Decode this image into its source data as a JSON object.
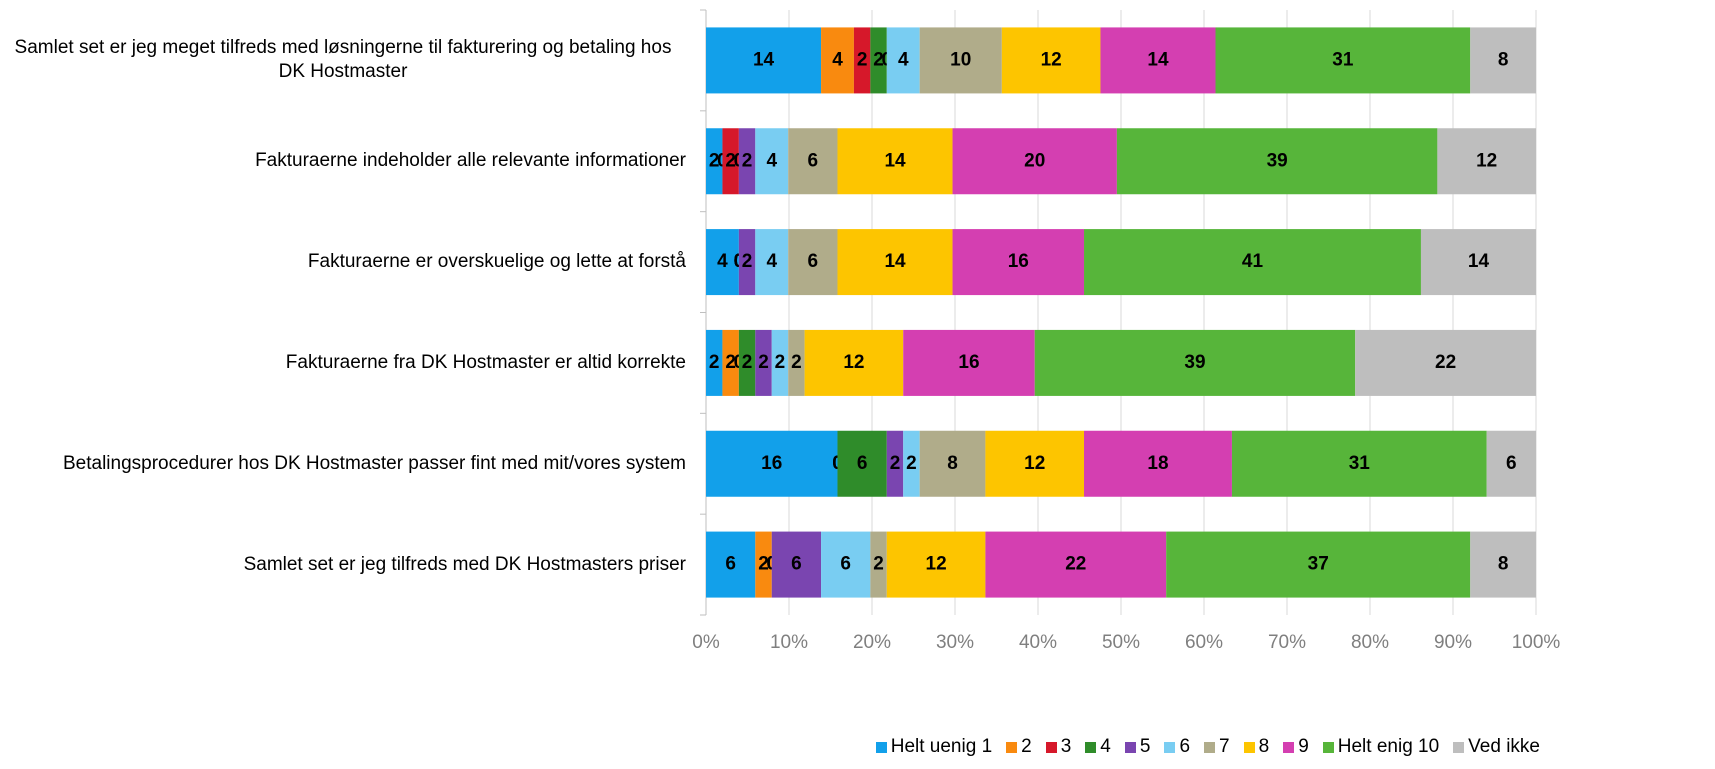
{
  "chart_data": {
    "type": "stacked-bar-100",
    "categories": [
      "Samlet set er jeg meget tilfreds med løsningerne til fakturering og betaling hos DK Hostmaster",
      "Fakturaerne indeholder alle relevante informationer",
      "Fakturaerne er overskuelige og lette at forstå",
      "Fakturaerne fra DK Hostmaster er altid korrekte",
      "Betalingsprocedurer hos DK Hostmaster passer fint med mit/vores system",
      "Samlet set er jeg tilfreds med DK Hostmasters priser"
    ],
    "series": [
      {
        "name": "Helt uenig 1",
        "color": "#12a0ea",
        "values": [
          14,
          2,
          4,
          2,
          16,
          6
        ]
      },
      {
        "name": "2",
        "color": "#f98a0f",
        "values": [
          4,
          0,
          0,
          2,
          0,
          2
        ]
      },
      {
        "name": "3",
        "color": "#d6182a",
        "values": [
          2,
          2,
          0,
          0,
          0,
          0
        ]
      },
      {
        "name": "4",
        "color": "#2f8c2a",
        "values": [
          2,
          0,
          0,
          2,
          6,
          0
        ]
      },
      {
        "name": "5",
        "color": "#7a45b0",
        "values": [
          0,
          2,
          2,
          2,
          2,
          6
        ]
      },
      {
        "name": "6",
        "color": "#79cdf2",
        "values": [
          4,
          4,
          4,
          2,
          2,
          6
        ]
      },
      {
        "name": "7",
        "color": "#b0ac8a",
        "values": [
          10,
          6,
          6,
          2,
          8,
          2
        ]
      },
      {
        "name": "8",
        "color": "#fdc500",
        "values": [
          12,
          14,
          14,
          12,
          12,
          12
        ]
      },
      {
        "name": "9",
        "color": "#d43fb1",
        "values": [
          14,
          20,
          16,
          16,
          18,
          22
        ]
      },
      {
        "name": "Helt enig 10",
        "color": "#57b53a",
        "values": [
          31,
          39,
          41,
          39,
          31,
          37
        ]
      },
      {
        "name": "Ved ikke",
        "color": "#bebebe",
        "values": [
          8,
          12,
          14,
          22,
          6,
          8
        ]
      }
    ],
    "xlim": [
      0,
      100
    ],
    "xticks": [
      {
        "value": 0,
        "label": "0%"
      },
      {
        "value": 10,
        "label": "10%"
      },
      {
        "value": 20,
        "label": "20%"
      },
      {
        "value": 30,
        "label": "30%"
      },
      {
        "value": 40,
        "label": "40%"
      },
      {
        "value": 50,
        "label": "50%"
      },
      {
        "value": 60,
        "label": "60%"
      },
      {
        "value": 70,
        "label": "70%"
      },
      {
        "value": 80,
        "label": "80%"
      },
      {
        "value": 90,
        "label": "90%"
      },
      {
        "value": 100,
        "label": "100%"
      }
    ],
    "grid": true,
    "legend": "bottom"
  }
}
